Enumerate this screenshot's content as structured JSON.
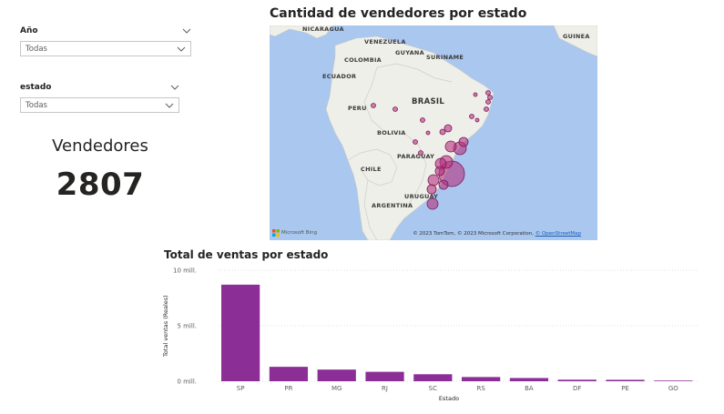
{
  "slicers": [
    {
      "title": "Año",
      "value": "Todas"
    },
    {
      "title": "estado",
      "value": "Todas"
    }
  ],
  "card": {
    "label": "Vendedores",
    "value": "2807"
  },
  "map": {
    "title": "Cantidad de vendedores por estado",
    "countries": [
      "NICARAGUA",
      "VENEZUELA",
      "GUYANA",
      "SURINAME",
      "GUINEA",
      "COLOMBIA",
      "ECUADOR",
      "PERU",
      "BRASIL",
      "BOLIVIA",
      "PARAGUAY",
      "CHILE",
      "URUGUAY",
      "ARGENTINA"
    ],
    "credit": "© 2023 TomTom, © 2023 Microsoft Corporation, ",
    "credit_link": "© OpenStreetMap",
    "bing": "Microsoft Bing",
    "bubble_color": "#b4307e",
    "ocean_color": "#a9c7ef"
  },
  "chart": {
    "title": "Total de ventas por estado"
  },
  "chart_data": {
    "type": "bar",
    "title": "Total de ventas por estado",
    "xlabel": "Estado",
    "ylabel": "Total ventas (Reales)",
    "categories": [
      "SP",
      "PR",
      "MG",
      "RJ",
      "SC",
      "RS",
      "BA",
      "DF",
      "PE",
      "GO"
    ],
    "values": [
      8.7,
      1.3,
      1.05,
      0.85,
      0.63,
      0.38,
      0.29,
      0.14,
      0.13,
      0.06
    ],
    "yticks": [
      "0 mill.",
      "5 mill.",
      "10 mill."
    ],
    "ylim": [
      0,
      10
    ],
    "grid": true,
    "color": "#8b2f97"
  }
}
